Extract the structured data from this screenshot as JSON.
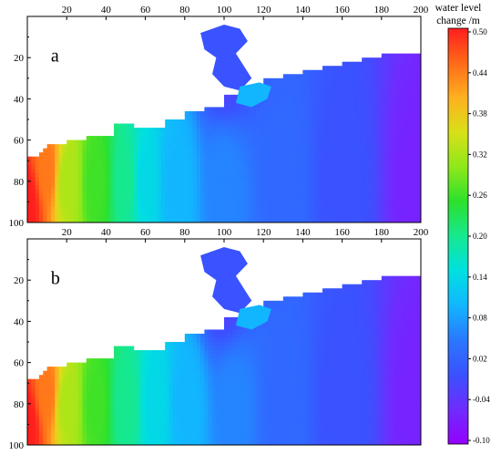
{
  "chart_data": {
    "type": "heatmap",
    "panels": [
      {
        "label": "a",
        "xticks": [
          20,
          40,
          60,
          80,
          100,
          120,
          140,
          160,
          180,
          200
        ],
        "yticks": [
          20,
          40,
          60,
          80,
          100
        ],
        "xlim": [
          0,
          200
        ],
        "ylim": [
          0,
          100
        ],
        "x_axis_position": "top",
        "field": {
          "description_points": [
            {
              "x": 0,
              "y": 90,
              "value": 0.5
            },
            {
              "x": 10,
              "y": 75,
              "value": 0.44
            },
            {
              "x": 20,
              "y": 80,
              "value": 0.32
            },
            {
              "x": 35,
              "y": 80,
              "value": 0.26
            },
            {
              "x": 50,
              "y": 80,
              "value": 0.2
            },
            {
              "x": 60,
              "y": 80,
              "value": 0.14
            },
            {
              "x": 75,
              "y": 80,
              "value": 0.1
            },
            {
              "x": 100,
              "y": 80,
              "value": 0.06
            },
            {
              "x": 130,
              "y": 80,
              "value": 0.03
            },
            {
              "x": 160,
              "y": 80,
              "value": 0.0
            },
            {
              "x": 200,
              "y": 80,
              "value": -0.06
            },
            {
              "x": 100,
              "y": 20,
              "value": -0.02
            }
          ]
        }
      },
      {
        "label": "b",
        "xticks": [
          20,
          40,
          60,
          80,
          100,
          120,
          140,
          160,
          180,
          200
        ],
        "yticks": [
          20,
          40,
          60,
          80,
          100
        ],
        "xlim": [
          0,
          200
        ],
        "ylim": [
          0,
          100
        ],
        "x_axis_position": "top",
        "field": {
          "description_points": [
            {
              "x": 0,
              "y": 90,
              "value": 0.5
            },
            {
              "x": 10,
              "y": 75,
              "value": 0.44
            },
            {
              "x": 20,
              "y": 80,
              "value": 0.32
            },
            {
              "x": 35,
              "y": 80,
              "value": 0.26
            },
            {
              "x": 50,
              "y": 80,
              "value": 0.2
            },
            {
              "x": 65,
              "y": 80,
              "value": 0.14
            },
            {
              "x": 80,
              "y": 80,
              "value": 0.1
            },
            {
              "x": 105,
              "y": 80,
              "value": 0.06
            },
            {
              "x": 130,
              "y": 80,
              "value": 0.03
            },
            {
              "x": 160,
              "y": 80,
              "value": 0.0
            },
            {
              "x": 200,
              "y": 80,
              "value": -0.06
            },
            {
              "x": 100,
              "y": 20,
              "value": -0.02
            }
          ]
        }
      }
    ],
    "colorbar": {
      "title_line1": "water level",
      "title_line2": "change /m",
      "tick_labels": [
        "0.50",
        "0.44",
        "0.38",
        "0.32",
        "0.26",
        "0.20",
        "0.14",
        "0.08",
        "0.02",
        "-0.04",
        "-0.10"
      ],
      "range": [
        -0.1,
        0.5
      ],
      "colors": [
        "#9400ff",
        "#6f2cff",
        "#3a52ff",
        "#2a78ff",
        "#12b6ff",
        "#00e0e0",
        "#16e890",
        "#2ce02c",
        "#8ee81a",
        "#d8e018",
        "#ffb020",
        "#ff6a18",
        "#ff1e1e"
      ]
    }
  }
}
